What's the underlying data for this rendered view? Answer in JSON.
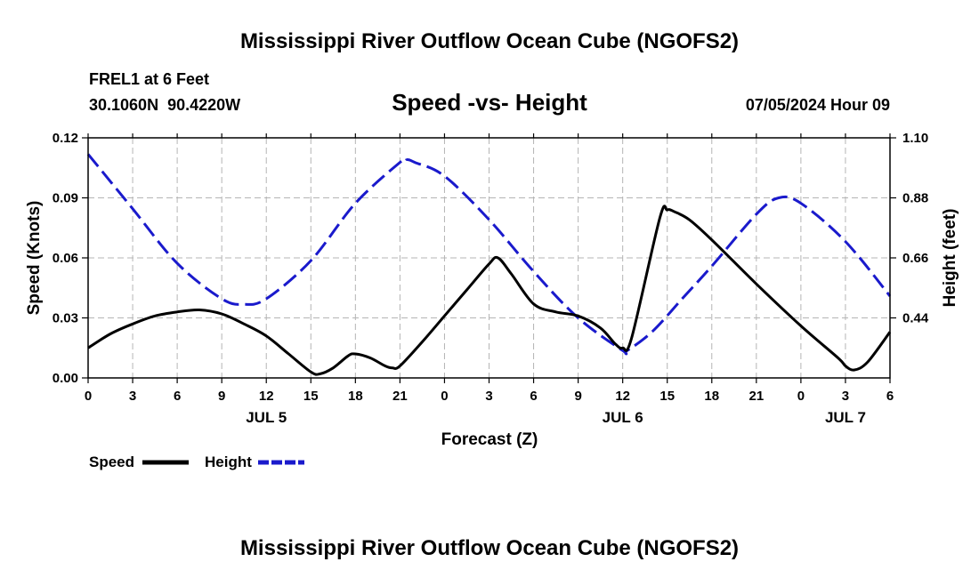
{
  "header": {
    "title": "Mississippi River Outflow Ocean Cube (NGOFS2)",
    "station": "FREL1 at 6 Feet",
    "coords": "30.1060N  90.4220W",
    "datetime": "07/05/2024 Hour 09"
  },
  "footer": {
    "title": "Mississippi River Outflow Ocean Cube (NGOFS2)"
  },
  "chart_data": {
    "type": "line",
    "title": "Speed -vs- Height",
    "xlabel": "Forecast (Z)",
    "ylabel_left": "Speed (Knots)",
    "ylabel_right": "Height (feet)",
    "xlim": [
      0,
      54
    ],
    "ylim_left": [
      0,
      0.12
    ],
    "ylim_right": [
      0.22,
      1.1
    ],
    "x_ticks": [
      0,
      3,
      6,
      9,
      12,
      15,
      18,
      21,
      24,
      27,
      30,
      33,
      36,
      39,
      42,
      45,
      48,
      51,
      54
    ],
    "x_tick_labels": [
      "0",
      "3",
      "6",
      "9",
      "12",
      "15",
      "18",
      "21",
      "0",
      "3",
      "6",
      "9",
      "12",
      "15",
      "18",
      "21",
      "0",
      "3",
      "6"
    ],
    "day_labels": [
      {
        "x": 12,
        "label": "JUL 5"
      },
      {
        "x": 36,
        "label": "JUL 6"
      },
      {
        "x": 51,
        "label": "JUL 7"
      }
    ],
    "y_left_ticks": [
      0,
      0.03,
      0.06,
      0.09,
      0.12
    ],
    "y_left_tick_labels": [
      "0.00",
      "0.03",
      "0.06",
      "0.09",
      "0.12"
    ],
    "y_right_ticks": [
      0.44,
      0.66,
      0.88,
      1.1
    ],
    "y_right_tick_labels": [
      "0.44",
      "0.66",
      "0.88",
      "1.10"
    ],
    "grid": true,
    "series": [
      {
        "name": "Speed",
        "axis": "left",
        "color": "#000000",
        "style": "solid",
        "x": [
          0,
          1.5,
          3,
          4.5,
          6,
          7.5,
          9,
          10.5,
          12,
          13.5,
          15,
          15.6,
          16.5,
          17.5,
          18,
          19,
          20,
          20.5,
          21,
          22.5,
          24,
          25.5,
          27,
          27.6,
          28.5,
          30,
          31.5,
          33,
          34.5,
          35.5,
          36,
          36.6,
          38.5,
          39,
          39.5,
          40.5,
          42,
          45,
          48,
          50.5,
          51,
          51.6,
          52.5,
          54
        ],
        "y": [
          0.015,
          0.022,
          0.027,
          0.031,
          0.033,
          0.034,
          0.032,
          0.027,
          0.021,
          0.012,
          0.003,
          0.002,
          0.005,
          0.011,
          0.012,
          0.01,
          0.006,
          0.005,
          0.006,
          0.018,
          0.031,
          0.044,
          0.057,
          0.06,
          0.052,
          0.037,
          0.033,
          0.031,
          0.025,
          0.017,
          0.015,
          0.02,
          0.08,
          0.084,
          0.083,
          0.079,
          0.069,
          0.047,
          0.026,
          0.01,
          0.006,
          0.004,
          0.008,
          0.023
        ]
      },
      {
        "name": "Height",
        "axis": "right",
        "color": "#1a1acc",
        "style": "dashed",
        "x": [
          0,
          3,
          6,
          9,
          10.5,
          12,
          15,
          18,
          21,
          21.5,
          22,
          24,
          27,
          30,
          33,
          36,
          36.3,
          38,
          40,
          42,
          45,
          46.5,
          48,
          51,
          54
        ],
        "y": [
          1.04,
          0.84,
          0.64,
          0.51,
          0.49,
          0.51,
          0.65,
          0.86,
          1.01,
          1.02,
          1.01,
          0.96,
          0.8,
          0.61,
          0.44,
          0.32,
          0.32,
          0.39,
          0.51,
          0.63,
          0.82,
          0.88,
          0.86,
          0.72,
          0.52
        ]
      }
    ],
    "legend": {
      "position": "bottom-left",
      "entries": [
        "Speed",
        "Height"
      ]
    }
  }
}
